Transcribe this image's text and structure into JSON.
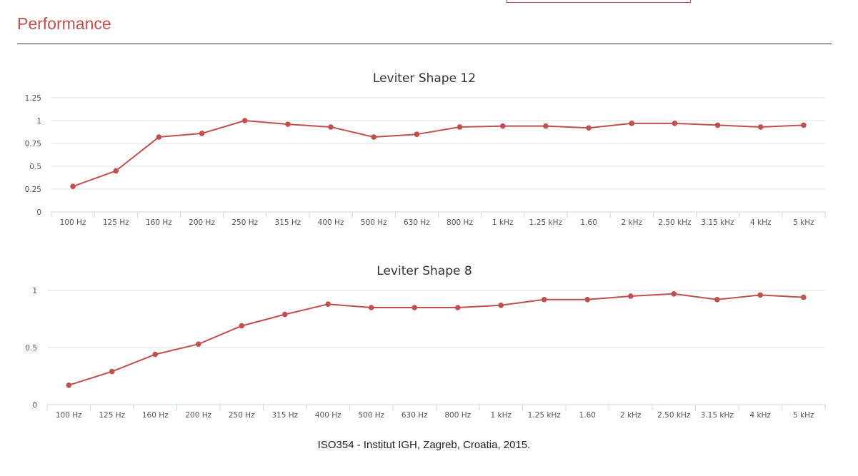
{
  "page": {
    "title": "Performance",
    "source_note": "ISO354 - Institut IGH, Zagreb, Croatia, 2015."
  },
  "colors": {
    "accent": "#c0504d",
    "series": "#c0504d"
  },
  "chart_data": [
    {
      "type": "line",
      "title": "Leviter Shape 12",
      "xlabel": "",
      "ylabel": "",
      "categories": [
        "100 Hz",
        "125 Hz",
        "160 Hz",
        "200 Hz",
        "250 Hz",
        "315 Hz",
        "400 Hz",
        "500 Hz",
        "630 Hz",
        "800 Hz",
        "1 kHz",
        "1.25 kHz",
        "1.60",
        "2 kHz",
        "2.50 kHz",
        "3.15 kHz",
        "4 kHz",
        "5 kHz"
      ],
      "series": [
        {
          "values": [
            0.28,
            0.45,
            0.82,
            0.86,
            1.0,
            0.96,
            0.93,
            0.82,
            0.85,
            0.93,
            0.94,
            0.94,
            0.92,
            0.97,
            0.97,
            0.95,
            0.93,
            0.95
          ]
        }
      ],
      "ylim": [
        0,
        1.25
      ],
      "yticks": [
        0,
        0.25,
        0.5,
        0.75,
        1,
        1.25
      ],
      "ytick_labels": [
        "0",
        "0.25",
        "0.5",
        "0.75",
        "1",
        "1.25"
      ],
      "grid": true,
      "legend": "none"
    },
    {
      "type": "line",
      "title": "Leviter Shape 8",
      "xlabel": "",
      "ylabel": "",
      "categories": [
        "100 Hz",
        "125 Hz",
        "160 Hz",
        "200 Hz",
        "250 Hz",
        "315 Hz",
        "400 Hz",
        "500 Hz",
        "630 Hz",
        "800 Hz",
        "1 kHz",
        "1.25 kHz",
        "1.60",
        "2 kHz",
        "2.50 kHz",
        "3.15 kHz",
        "4 kHz",
        "5 kHz"
      ],
      "series": [
        {
          "values": [
            0.17,
            0.29,
            0.44,
            0.53,
            0.69,
            0.79,
            0.88,
            0.85,
            0.85,
            0.85,
            0.87,
            0.92,
            0.92,
            0.95,
            0.97,
            0.92,
            0.96,
            0.94
          ]
        }
      ],
      "ylim": [
        0,
        1
      ],
      "yticks": [
        0,
        0.5,
        1
      ],
      "ytick_labels": [
        "0",
        "0.5",
        "1"
      ],
      "grid": true,
      "legend": "none"
    }
  ]
}
